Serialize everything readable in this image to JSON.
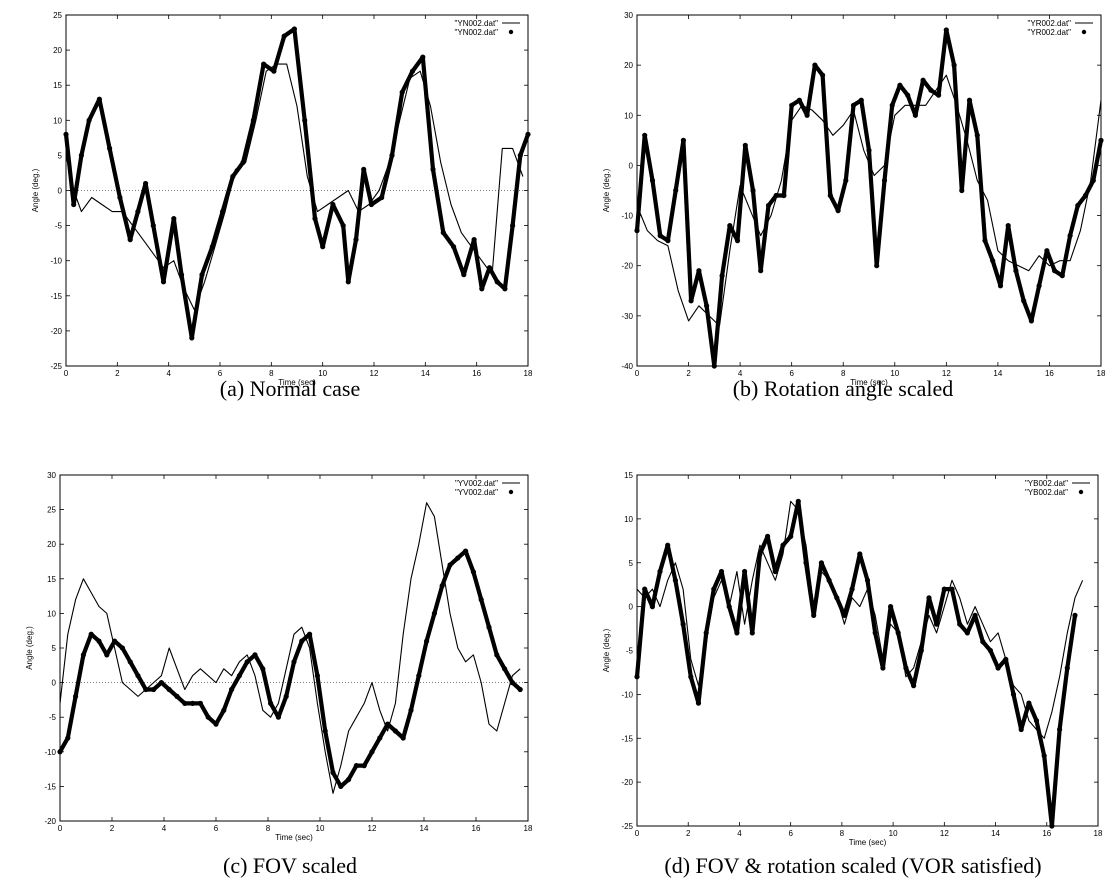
{
  "chart_data": [
    {
      "type": "line",
      "caption": "(a) Normal case",
      "xlabel": "Time (sec)",
      "ylabel": "Angle (deg.)",
      "xlim": [
        0,
        18
      ],
      "ylim": [
        -25,
        25
      ],
      "xticks": [
        0,
        2,
        4,
        6,
        8,
        10,
        12,
        14,
        16,
        18
      ],
      "yticks": [
        -25,
        -20,
        -15,
        -10,
        -5,
        0,
        5,
        10,
        15,
        20,
        25
      ],
      "zero_line": true,
      "legend_position": "top-right",
      "series": [
        {
          "name": "\"YN002.dat\"",
          "style": "thin-line",
          "x": [
            0,
            0.3,
            0.6,
            1.0,
            1.4,
            1.8,
            2.2,
            2.6,
            3.0,
            3.4,
            3.8,
            4.2,
            4.6,
            5.0,
            5.4,
            5.8,
            6.2,
            6.6,
            7.0,
            7.4,
            7.8,
            8.2,
            8.6,
            9.0,
            9.4,
            9.8,
            10.2,
            10.6,
            11.0,
            11.4,
            11.8,
            12.2,
            12.6,
            13.0,
            13.4,
            13.8,
            14.2,
            14.6,
            15.0,
            15.4,
            15.8,
            16.2,
            16.6,
            17.0,
            17.4,
            17.8
          ],
          "y": [
            5,
            0,
            -3,
            -1,
            -2,
            -3,
            -3,
            -5,
            -7,
            -9,
            -11,
            -10,
            -14,
            -17,
            -13,
            -8,
            -3,
            3,
            4,
            10,
            17,
            18,
            18,
            12,
            2,
            -3,
            -2,
            -1,
            0,
            -3,
            -2,
            0,
            4,
            10,
            16,
            17,
            12,
            4,
            -2,
            -6,
            -8,
            -10,
            -12,
            6,
            6,
            2
          ]
        },
        {
          "name": "\"YN002.dat\"",
          "style": "thick-dots",
          "x": [
            0,
            0.3,
            0.6,
            0.9,
            1.3,
            1.7,
            2.1,
            2.5,
            2.8,
            3.1,
            3.4,
            3.8,
            4.2,
            4.5,
            4.9,
            5.3,
            5.7,
            6.1,
            6.5,
            6.9,
            7.3,
            7.7,
            8.1,
            8.5,
            8.9,
            9.3,
            9.7,
            10.0,
            10.4,
            10.8,
            11.0,
            11.3,
            11.6,
            11.9,
            12.3,
            12.7,
            13.1,
            13.5,
            13.9,
            14.3,
            14.7,
            15.1,
            15.5,
            15.9,
            16.2,
            16.5,
            16.8,
            17.1,
            17.4,
            17.7,
            18.0
          ],
          "y": [
            8,
            -2,
            5,
            10,
            13,
            6,
            -1,
            -7,
            -3,
            1,
            -5,
            -13,
            -4,
            -12,
            -21,
            -12,
            -8,
            -3,
            2,
            4,
            10,
            18,
            17,
            22,
            23,
            10,
            -4,
            -8,
            -2,
            -5,
            -13,
            -7,
            3,
            -2,
            -1,
            5,
            14,
            17,
            19,
            3,
            -6,
            -8,
            -12,
            -7,
            -14,
            -11,
            -13,
            -14,
            -5,
            5,
            8
          ]
        }
      ]
    },
    {
      "type": "line",
      "caption": "(b) Rotation angle scaled",
      "xlabel": "Time (sec)",
      "ylabel": "Angle (deg.)",
      "xlim": [
        0,
        18
      ],
      "ylim": [
        -40,
        30
      ],
      "xticks": [
        0,
        2,
        4,
        6,
        8,
        10,
        12,
        14,
        16,
        18
      ],
      "yticks": [
        -40,
        -30,
        -20,
        -10,
        0,
        10,
        20,
        30
      ],
      "zero_line": false,
      "legend_position": "top-right",
      "series": [
        {
          "name": "\"YR002.dat\"",
          "style": "thin-line",
          "x": [
            0,
            0.4,
            0.8,
            1.2,
            1.6,
            2.0,
            2.4,
            2.8,
            3.2,
            3.6,
            4.0,
            4.4,
            4.8,
            5.2,
            5.6,
            6.0,
            6.4,
            6.8,
            7.2,
            7.6,
            8.0,
            8.4,
            8.8,
            9.2,
            9.6,
            10.0,
            10.4,
            10.8,
            11.2,
            11.6,
            12.0,
            12.4,
            12.8,
            13.2,
            13.6,
            14.0,
            14.4,
            14.8,
            15.2,
            15.6,
            16.0,
            16.4,
            16.8,
            17.2,
            17.6,
            18.0
          ],
          "y": [
            -8,
            -13,
            -15,
            -16,
            -25,
            -31,
            -28,
            -30,
            -32,
            -17,
            -4,
            -9,
            -14,
            -10,
            -3,
            9,
            12,
            11,
            9,
            6,
            8,
            11,
            3,
            -2,
            0,
            10,
            12,
            12,
            12,
            15,
            18,
            12,
            5,
            -3,
            -7,
            -17,
            -19,
            -20,
            -21,
            -18,
            -20,
            -19,
            -19,
            -13,
            -3,
            13
          ]
        },
        {
          "name": "\"YR002.dat\"",
          "style": "thick-dots",
          "x": [
            0,
            0.3,
            0.6,
            0.9,
            1.2,
            1.5,
            1.8,
            2.1,
            2.4,
            2.7,
            3.0,
            3.3,
            3.6,
            3.9,
            4.2,
            4.5,
            4.8,
            5.1,
            5.4,
            5.7,
            6.0,
            6.3,
            6.6,
            6.9,
            7.2,
            7.5,
            7.8,
            8.1,
            8.4,
            8.7,
            9.0,
            9.3,
            9.6,
            9.9,
            10.2,
            10.5,
            10.8,
            11.1,
            11.4,
            11.7,
            12.0,
            12.3,
            12.6,
            12.9,
            13.2,
            13.5,
            13.8,
            14.1,
            14.4,
            14.7,
            15.0,
            15.3,
            15.6,
            15.9,
            16.2,
            16.5,
            16.8,
            17.1,
            17.4,
            17.7,
            18.0
          ],
          "y": [
            -13,
            6,
            -3,
            -14,
            -15,
            -5,
            5,
            -27,
            -21,
            -28,
            -40,
            -22,
            -12,
            -15,
            4,
            -5,
            -21,
            -8,
            -6,
            -6,
            12,
            13,
            10,
            20,
            18,
            -6,
            -9,
            -3,
            12,
            13,
            3,
            -20,
            -3,
            12,
            16,
            14,
            10,
            17,
            15,
            14,
            27,
            20,
            -5,
            13,
            6,
            -15,
            -19,
            -24,
            -12,
            -21,
            -27,
            -31,
            -24,
            -17,
            -21,
            -22,
            -14,
            -8,
            -6,
            -3,
            5
          ]
        }
      ]
    },
    {
      "type": "line",
      "caption": "(c) FOV scaled",
      "xlabel": "Time (sec)",
      "ylabel": "Angle (deg.)",
      "xlim": [
        0,
        18
      ],
      "ylim": [
        -20,
        30
      ],
      "xticks": [
        0,
        2,
        4,
        6,
        8,
        10,
        12,
        14,
        16,
        18
      ],
      "yticks": [
        -20,
        -15,
        -10,
        -5,
        0,
        5,
        10,
        15,
        20,
        25,
        30
      ],
      "zero_line": true,
      "legend_position": "top-right",
      "series": [
        {
          "name": "\"YV002.dat\"",
          "style": "thin-line",
          "x": [
            0,
            0.3,
            0.6,
            0.9,
            1.2,
            1.5,
            1.8,
            2.1,
            2.4,
            2.7,
            3.0,
            3.3,
            3.6,
            3.9,
            4.2,
            4.5,
            4.8,
            5.1,
            5.4,
            5.7,
            6.0,
            6.3,
            6.6,
            6.9,
            7.2,
            7.5,
            7.8,
            8.1,
            8.4,
            8.7,
            9.0,
            9.3,
            9.6,
            9.9,
            10.2,
            10.5,
            10.8,
            11.1,
            11.4,
            11.7,
            12.0,
            12.3,
            12.6,
            12.9,
            13.2,
            13.5,
            13.8,
            14.1,
            14.4,
            14.7,
            15.0,
            15.3,
            15.6,
            15.9,
            16.2,
            16.5,
            16.8,
            17.1,
            17.4,
            17.7
          ],
          "y": [
            -3,
            7,
            12,
            15,
            13,
            11,
            10,
            5,
            0,
            -1,
            -2,
            -1,
            0,
            1,
            5,
            2,
            -1,
            1,
            2,
            1,
            0,
            2,
            1,
            3,
            4,
            1,
            -4,
            -5,
            -3,
            2,
            7,
            8,
            5,
            -3,
            -10,
            -16,
            -12,
            -7,
            -5,
            -3,
            0,
            -4,
            -7,
            -3,
            7,
            15,
            20,
            26,
            24,
            17,
            10,
            5,
            3,
            4,
            0,
            -6,
            -7,
            -3,
            1,
            2
          ]
        },
        {
          "name": "\"YV002.dat\"",
          "style": "thick-dots",
          "x": [
            0,
            0.3,
            0.6,
            0.9,
            1.2,
            1.5,
            1.8,
            2.1,
            2.4,
            2.7,
            3.0,
            3.3,
            3.6,
            3.9,
            4.2,
            4.5,
            4.8,
            5.1,
            5.4,
            5.7,
            6.0,
            6.3,
            6.6,
            6.9,
            7.2,
            7.5,
            7.8,
            8.1,
            8.4,
            8.7,
            9.0,
            9.3,
            9.6,
            9.9,
            10.2,
            10.5,
            10.8,
            11.1,
            11.4,
            11.7,
            12.0,
            12.3,
            12.6,
            12.9,
            13.2,
            13.5,
            13.8,
            14.1,
            14.4,
            14.7,
            15.0,
            15.3,
            15.6,
            15.9,
            16.2,
            16.5,
            16.8,
            17.1,
            17.4,
            17.7
          ],
          "y": [
            -10,
            -8,
            -2,
            4,
            7,
            6,
            4,
            6,
            5,
            3,
            1,
            -1,
            -1,
            0,
            -1,
            -2,
            -3,
            -3,
            -3,
            -5,
            -6,
            -4,
            -1,
            1,
            3,
            4,
            2,
            -3,
            -5,
            -2,
            3,
            6,
            7,
            1,
            -7,
            -13,
            -15,
            -14,
            -12,
            -12,
            -10,
            -8,
            -6,
            -7,
            -8,
            -4,
            1,
            6,
            10,
            14,
            17,
            18,
            19,
            16,
            12,
            8,
            4,
            2,
            0,
            -1
          ]
        }
      ]
    },
    {
      "type": "line",
      "caption": "(d) FOV & rotation scaled (VOR satisfied)",
      "xlabel": "Time (sec)",
      "ylabel": "Angle (deg.)",
      "xlim": [
        0,
        18
      ],
      "ylim": [
        -25,
        15
      ],
      "xticks": [
        0,
        2,
        4,
        6,
        8,
        10,
        12,
        14,
        16,
        18
      ],
      "yticks": [
        -25,
        -20,
        -15,
        -10,
        -5,
        0,
        5,
        10,
        15
      ],
      "zero_line": false,
      "legend_position": "top-right",
      "series": [
        {
          "name": "\"YB002.dat\"",
          "style": "thin-line",
          "x": [
            0,
            0.3,
            0.6,
            0.9,
            1.2,
            1.5,
            1.8,
            2.1,
            2.4,
            2.7,
            3.0,
            3.3,
            3.6,
            3.9,
            4.2,
            4.5,
            4.8,
            5.1,
            5.4,
            5.7,
            6.0,
            6.3,
            6.6,
            6.9,
            7.2,
            7.5,
            7.8,
            8.1,
            8.4,
            8.7,
            9.0,
            9.3,
            9.6,
            9.9,
            10.2,
            10.5,
            10.8,
            11.1,
            11.4,
            11.7,
            12.0,
            12.3,
            12.6,
            12.9,
            13.2,
            13.5,
            13.8,
            14.1,
            14.4,
            14.7,
            15.0,
            15.3,
            15.6,
            15.9,
            16.2,
            16.5,
            16.8,
            17.1,
            17.4
          ],
          "y": [
            2,
            1,
            2,
            0,
            3,
            5,
            2,
            -6,
            -9,
            -4,
            1,
            3,
            0,
            4,
            -2,
            3,
            7,
            5,
            3,
            6,
            12,
            11,
            7,
            0,
            4,
            3,
            1,
            -2,
            1,
            0,
            2,
            -1,
            -6,
            -2,
            -3,
            -8,
            -7,
            -4,
            -1,
            -3,
            0,
            3,
            1,
            -2,
            0,
            -2,
            -4,
            -3,
            -6,
            -9,
            -10,
            -13,
            -14,
            -15,
            -12,
            -8,
            -3,
            1,
            3
          ]
        },
        {
          "name": "\"YB002.dat\"",
          "style": "thick-dots",
          "x": [
            0,
            0.3,
            0.6,
            0.9,
            1.2,
            1.5,
            1.8,
            2.1,
            2.4,
            2.7,
            3.0,
            3.3,
            3.6,
            3.9,
            4.2,
            4.5,
            4.8,
            5.1,
            5.4,
            5.7,
            6.0,
            6.3,
            6.6,
            6.9,
            7.2,
            7.5,
            7.8,
            8.1,
            8.4,
            8.7,
            9.0,
            9.3,
            9.6,
            9.9,
            10.2,
            10.5,
            10.8,
            11.1,
            11.4,
            11.7,
            12.0,
            12.3,
            12.6,
            12.9,
            13.2,
            13.5,
            13.8,
            14.1,
            14.4,
            14.7,
            15.0,
            15.3,
            15.6,
            15.9,
            16.2,
            16.5,
            16.8,
            17.1
          ],
          "y": [
            -8,
            2,
            0,
            4,
            7,
            3,
            -2,
            -8,
            -11,
            -3,
            2,
            4,
            0,
            -3,
            4,
            -3,
            6,
            8,
            4,
            7,
            8,
            12,
            5,
            -1,
            5,
            3,
            1,
            -1,
            2,
            6,
            3,
            -3,
            -7,
            0,
            -3,
            -7,
            -9,
            -5,
            1,
            -2,
            2,
            2,
            -2,
            -3,
            -1,
            -4,
            -5,
            -7,
            -6,
            -10,
            -14,
            -11,
            -13,
            -17,
            -25,
            -14,
            -7,
            -1
          ]
        }
      ]
    }
  ]
}
